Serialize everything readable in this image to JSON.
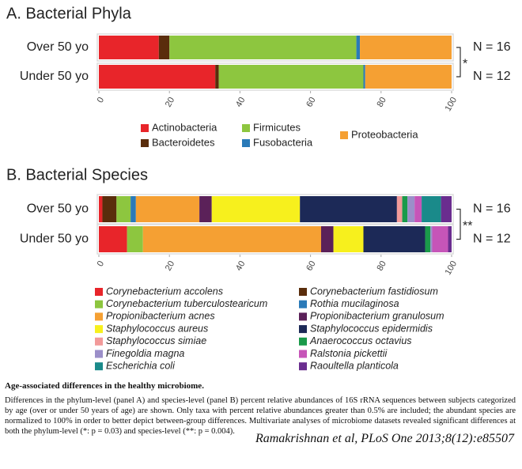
{
  "chart_data": [
    {
      "type": "stacked-bar-horizontal",
      "title": "A. Bacterial Phyla",
      "categories": [
        "Over 50 yo",
        "Under 50 yo"
      ],
      "xlim": [
        0,
        100
      ],
      "xticks": [
        0,
        20,
        40,
        60,
        80,
        100
      ],
      "series": [
        {
          "name": "Actinobacteria",
          "color": "#e8252a",
          "values": [
            17,
            33
          ]
        },
        {
          "name": "Bacteroidetes",
          "color": "#5a2d0c",
          "values": [
            3,
            1
          ]
        },
        {
          "name": "Firmicutes",
          "color": "#8dc63f",
          "values": [
            53,
            41
          ]
        },
        {
          "name": "Fusobacteria",
          "color": "#2a7ab8",
          "values": [
            1,
            0.5
          ]
        },
        {
          "name": "Proteobacteria",
          "color": "#f5a033",
          "values": [
            26,
            24.5
          ]
        }
      ],
      "annotations": [
        "N = 16",
        "N = 12"
      ],
      "significance": "*"
    },
    {
      "type": "stacked-bar-horizontal",
      "title": "B.  Bacterial Species",
      "categories": [
        "Over 50 yo",
        "Under 50 yo"
      ],
      "xlim": [
        0,
        100
      ],
      "xticks": [
        0,
        20,
        40,
        60,
        80,
        100
      ],
      "series": [
        {
          "name": "Corynebacterium accolens",
          "color": "#e8252a",
          "values": [
            1,
            8
          ]
        },
        {
          "name": "Corynebacterium fastidiosum",
          "color": "#5a2d0c",
          "values": [
            4,
            0
          ]
        },
        {
          "name": "Corynebacterium tuberculostearicum",
          "color": "#8dc63f",
          "values": [
            4,
            4.5
          ]
        },
        {
          "name": "Rothia mucilaginosa",
          "color": "#2a7ab8",
          "values": [
            1.5,
            0
          ]
        },
        {
          "name": "Propionibacterium acnes",
          "color": "#f5a033",
          "values": [
            18,
            50.5
          ]
        },
        {
          "name": "Propionibacterium granulosum",
          "color": "#5b2159",
          "values": [
            3.5,
            3.5
          ]
        },
        {
          "name": "Staphylococcus aureus",
          "color": "#f7f01d",
          "values": [
            25,
            8.5
          ]
        },
        {
          "name": "Staphylococcus epidermidis",
          "color": "#1c2957",
          "values": [
            27.5,
            17.5
          ]
        },
        {
          "name": "Staphylococcus simiae",
          "color": "#f29a9a",
          "values": [
            1.5,
            0
          ]
        },
        {
          "name": "Anaerococcus octavius",
          "color": "#1a9a4a",
          "values": [
            1.5,
            1.5
          ]
        },
        {
          "name": "Finegoldia magna",
          "color": "#9b8fc9",
          "values": [
            2,
            0.5
          ]
        },
        {
          "name": "Ralstonia pickettii",
          "color": "#c655b8",
          "values": [
            2,
            4.5
          ]
        },
        {
          "name": "Escherichia coli",
          "color": "#1a8a8a",
          "values": [
            5.5,
            0
          ]
        },
        {
          "name": "Raoultella planticola",
          "color": "#6a2d8f",
          "values": [
            3,
            1
          ]
        }
      ],
      "annotations": [
        "N = 16",
        "N = 12"
      ],
      "significance": "**"
    }
  ],
  "caption": {
    "title": "Age-associated differences in the healthy microbiome.",
    "body": "Differences in the phylum-level (panel A) and species-level (panel B) percent relative abundances of 16S rRNA sequences between subjects categorized by age (over or under 50 years of age) are shown. Only taxa with percent relative abundances greater than 0.5% are included; the abundant species are normalized to 100% in order to better depict between-group differences. Multivariate analyses of microbiome datasets revealed significant differences at both the phylum-level (*: p = 0.03) and species-level (**: p = 0.004).",
    "citation": "Ramakrishnan et al, PLoS One 2013;8(12):e85507"
  }
}
